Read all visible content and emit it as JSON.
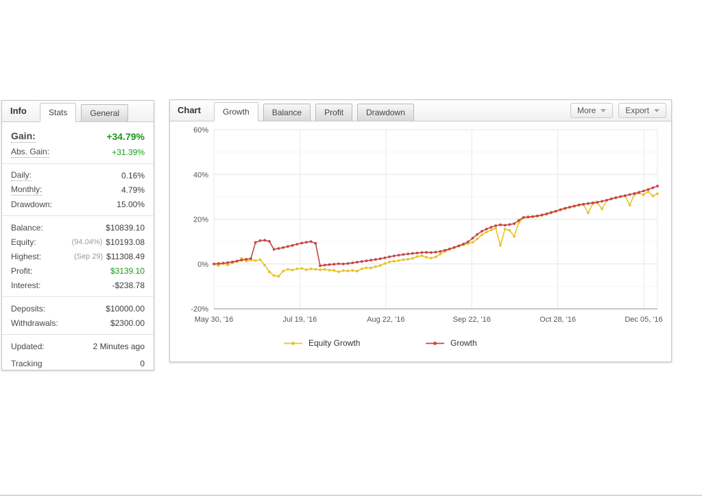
{
  "left_panel": {
    "title": "Info",
    "tabs": [
      {
        "label": "Stats",
        "active": true
      },
      {
        "label": "General",
        "active": false
      }
    ],
    "groups": [
      [
        {
          "label": "Gain:",
          "value": "+34.79%",
          "green": true,
          "bold": true,
          "dotted": true
        },
        {
          "label": "Abs. Gain:",
          "value": "+31.39%",
          "green": true,
          "dotted": true
        }
      ],
      [
        {
          "label": "Daily:",
          "value": "0.16%",
          "dotted": true
        },
        {
          "label": "Monthly:",
          "value": "4.79%",
          "dotted": true
        },
        {
          "label": "Drawdown:",
          "value": "15.00%"
        }
      ],
      [
        {
          "label": "Balance:",
          "value": "$10839.10"
        },
        {
          "label": "Equity:",
          "sub": "(94.04%)",
          "value": "$10193.08"
        },
        {
          "label": "Highest:",
          "sub": "(Sep 29)",
          "value": "$11308.49"
        },
        {
          "label": "Profit:",
          "value": "$3139.10",
          "green": true
        },
        {
          "label": "Interest:",
          "value": "-$238.78"
        }
      ],
      [
        {
          "label": "Deposits:",
          "value": "$10000.00"
        },
        {
          "label": "Withdrawals:",
          "value": "$2300.00"
        }
      ],
      [
        {
          "label": "Updated:",
          "value": "2 Minutes ago"
        },
        {
          "label": "Tracking",
          "value": "0",
          "spaced": true
        }
      ]
    ]
  },
  "chart_panel": {
    "title": "Chart",
    "tabs": [
      {
        "label": "Growth",
        "active": true
      },
      {
        "label": "Balance",
        "active": false
      },
      {
        "label": "Profit",
        "active": false
      },
      {
        "label": "Drawdown",
        "active": false
      }
    ],
    "buttons": [
      {
        "label": "More"
      },
      {
        "label": "Export"
      }
    ]
  },
  "chart_data": {
    "type": "line",
    "title": "",
    "xlabel": "",
    "ylabel": "",
    "y_unit": "%",
    "ylim": [
      -20,
      60
    ],
    "y_ticks": [
      60,
      40,
      20,
      0,
      -20
    ],
    "y_minor_ticks": [
      50,
      30,
      10,
      -10
    ],
    "x_tick_labels": [
      "May 30, '16",
      "Jul 19, '16",
      "Aug 22, '16",
      "Sep 22, '16",
      "Oct 28, '16",
      "Dec 05, '16"
    ],
    "grid": true,
    "legend_position": "bottom",
    "series": [
      {
        "name": "Equity Growth",
        "color": "#e7c32b",
        "values": [
          0,
          -0.7,
          0.4,
          -0.5,
          0.6,
          1.1,
          2.5,
          1.2,
          1.8,
          1.5,
          1.9,
          -0.5,
          -3.5,
          -5.2,
          -5.5,
          -3.2,
          -2.4,
          -2.7,
          -2.2,
          -2.0,
          -2.6,
          -2.2,
          -2.4,
          -2.6,
          -2.4,
          -2.8,
          -2.9,
          -3.5,
          -3.0,
          -3.1,
          -2.9,
          -3.2,
          -2.2,
          -1.7,
          -1.8,
          -1.2,
          -0.7,
          0.2,
          0.9,
          1.2,
          1.5,
          1.9,
          2.1,
          2.5,
          3.3,
          3.7,
          3.0,
          2.6,
          3.1,
          4.4,
          5.6,
          6.5,
          7.2,
          7.9,
          8.5,
          9.1,
          9.7,
          11.2,
          13.0,
          14.2,
          15.2,
          16.0,
          8.3,
          15.6,
          15.0,
          12.3,
          18.5,
          20.6,
          20.8,
          21.0,
          21.3,
          21.7,
          22.2,
          22.8,
          23.4,
          24.1,
          24.7,
          25.2,
          25.7,
          26.2,
          26.5,
          22.8,
          26.9,
          27.3,
          24.6,
          28.3,
          29.0,
          29.5,
          30.0,
          30.4,
          26.3,
          31.0,
          31.6,
          30.9,
          32.3,
          30.4,
          31.4
        ]
      },
      {
        "name": "Growth",
        "color": "#c64444",
        "values": [
          0,
          0.2,
          0.3,
          0.6,
          0.9,
          1.3,
          1.7,
          2.1,
          2.4,
          9.6,
          10.4,
          10.6,
          10.1,
          6.5,
          6.9,
          7.3,
          7.8,
          8.3,
          8.8,
          9.3,
          9.7,
          10.0,
          9.2,
          -0.8,
          -0.5,
          -0.3,
          -0.1,
          0.1,
          0.0,
          0.2,
          0.5,
          0.8,
          1.1,
          1.4,
          1.7,
          2.0,
          2.3,
          2.7,
          3.2,
          3.6,
          3.9,
          4.2,
          4.5,
          4.7,
          4.9,
          5.1,
          5.2,
          5.1,
          5.3,
          5.6,
          6.1,
          6.7,
          7.4,
          8.1,
          8.9,
          9.9,
          11.5,
          13.2,
          14.6,
          15.6,
          16.4,
          17.1,
          17.5,
          17.3,
          17.6,
          18.0,
          19.5,
          20.8,
          21.0,
          21.2,
          21.5,
          21.9,
          22.4,
          23.0,
          23.6,
          24.3,
          24.9,
          25.4,
          25.9,
          26.4,
          26.7,
          27.0,
          27.3,
          27.6,
          28.0,
          28.5,
          29.1,
          29.6,
          30.1,
          30.5,
          31.0,
          31.5,
          32.0,
          32.6,
          33.3,
          34.0,
          34.8
        ]
      }
    ]
  },
  "colors": {
    "gain_green": "#179a17",
    "equity_line": "#e7c32b",
    "growth_line": "#c64444",
    "grid_major": "#e4e4e4",
    "grid_minor": "#f4f4f4",
    "axis": "#b5b5b5"
  }
}
